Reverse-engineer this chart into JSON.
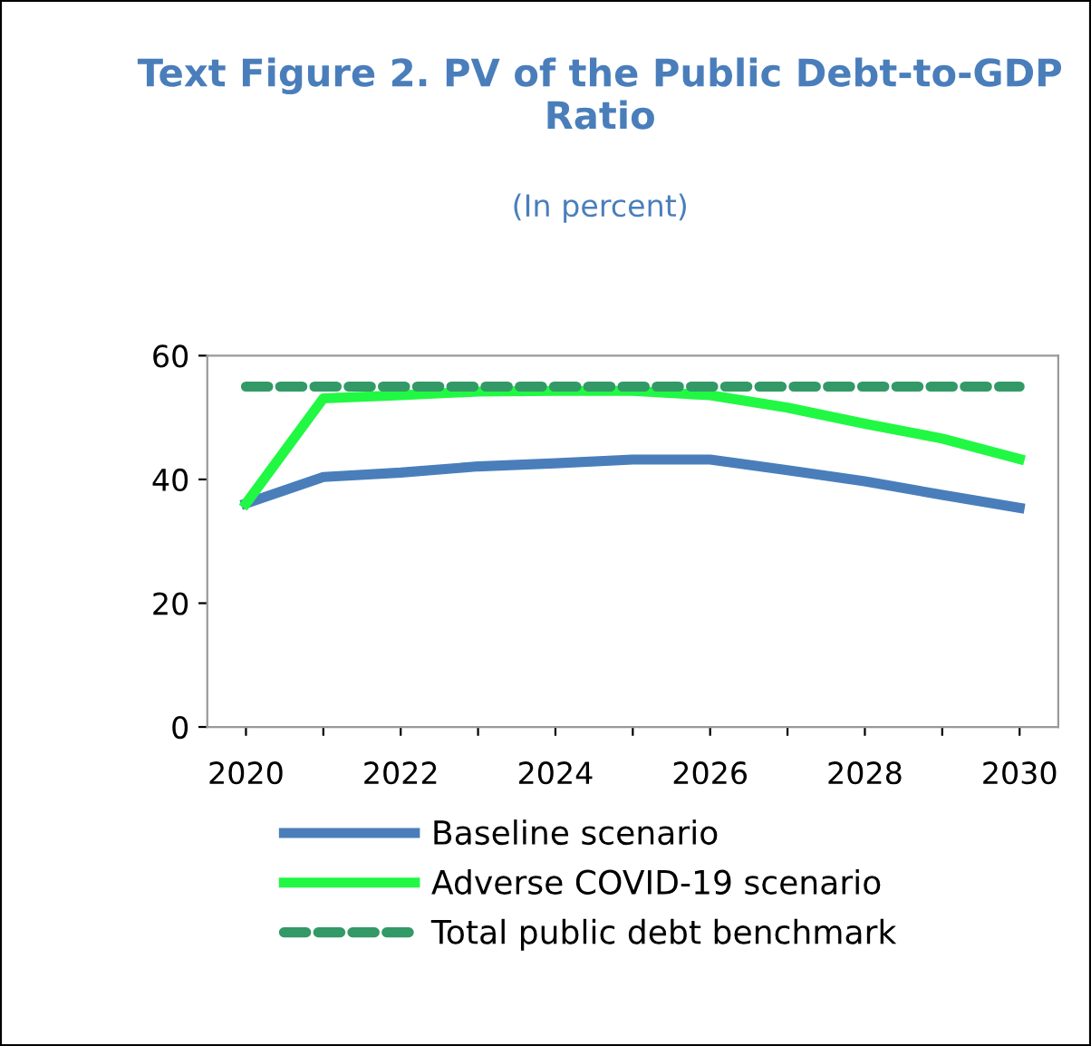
{
  "chart_data": {
    "type": "line",
    "title": "Text Figure 2. PV of the Public Debt-to-GDP Ratio",
    "subtitle": "(In percent)",
    "categories": [
      "2020",
      null,
      "2022",
      null,
      "2024",
      null,
      "2026",
      null,
      "2028",
      null,
      "2030"
    ],
    "series": [
      {
        "name": "Baseline scenario",
        "color": "#4a7ebb",
        "values": [
          36.1,
          40.4,
          41.1,
          42.1,
          42.6,
          43.2,
          43.2,
          41.5,
          39.7,
          37.5,
          35.4
        ]
      },
      {
        "name": "Adverse COVID-19 scenario",
        "color": "#21f843",
        "values": [
          36.1,
          53.1,
          53.6,
          54.2,
          54.3,
          54.3,
          53.6,
          51.6,
          49.0,
          46.6,
          43.3
        ]
      },
      {
        "name": "Total public debt benchmark",
        "color": "#339966",
        "line_style": "dashed",
        "values": [
          55,
          55,
          55,
          55,
          55,
          55,
          55,
          55,
          55,
          55,
          55
        ]
      }
    ],
    "ylim": [
      0,
      60
    ],
    "yticks": [
      0,
      20,
      40,
      60
    ],
    "grid": false,
    "legend": "bottom",
    "marker": "none"
  }
}
